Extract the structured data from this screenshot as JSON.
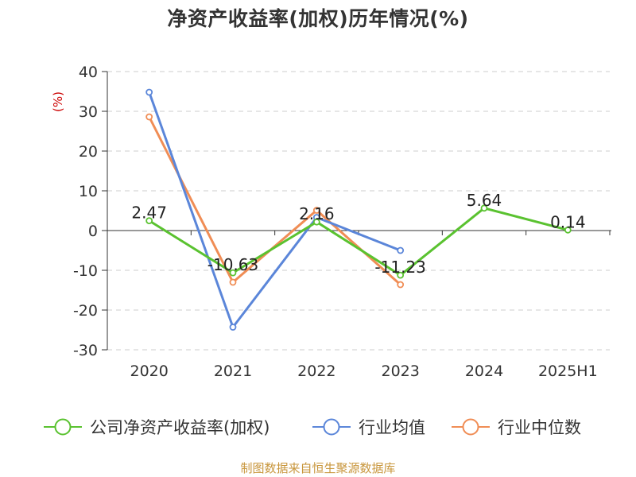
{
  "chart_data": {
    "type": "line",
    "title": "净资产收益率(加权)历年情况(%)",
    "ylabel": "(%)",
    "categories": [
      "2020",
      "2021",
      "2022",
      "2023",
      "2024",
      "2025H1"
    ],
    "yticks": [
      40,
      30,
      20,
      10,
      0,
      -10,
      -20,
      -30
    ],
    "ylim": [
      -30,
      40
    ],
    "grid": true,
    "legend_position": "bottom",
    "series": [
      {
        "name": "公司净资产收益率(加权)",
        "color": "#5ac230",
        "values": [
          2.47,
          -10.63,
          2.16,
          -11.23,
          5.64,
          0.14
        ],
        "labels": [
          "2.47",
          "-10.63",
          "2.16",
          "-11.23",
          "5.64",
          "0.14"
        ]
      },
      {
        "name": "行业均值",
        "color": "#5b86d9",
        "values": [
          34.8,
          -24.3,
          3.3,
          -5.0,
          null,
          null
        ]
      },
      {
        "name": "行业中位数",
        "color": "#f08d55",
        "values": [
          28.6,
          -13.0,
          5.1,
          -13.6,
          null,
          null
        ]
      }
    ]
  },
  "footer": {
    "source": "制图数据来自恒生聚源数据库",
    "color": "#c8963c"
  },
  "colors": {
    "axis": "#333333",
    "grid": "#cccccc",
    "ylabel": "#cc0000",
    "text": "#333333"
  }
}
